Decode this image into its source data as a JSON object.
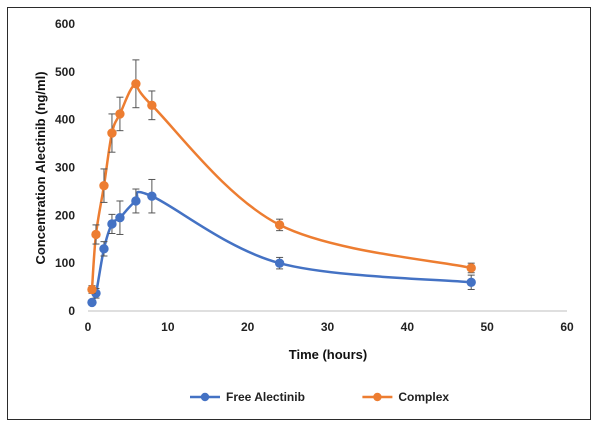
{
  "chart_data": {
    "type": "line",
    "title": "",
    "xlabel": "Time (hours)",
    "ylabel": "Concentration Alectinib (ng/ml)",
    "xlim": [
      0,
      60
    ],
    "ylim": [
      0,
      600
    ],
    "xticks": [
      0,
      10,
      20,
      30,
      40,
      50,
      60
    ],
    "yticks": [
      0,
      100,
      200,
      300,
      400,
      500,
      600
    ],
    "grid": false,
    "legend": "bottom",
    "series": [
      {
        "name": "Free Alectinib",
        "color": "#4472c4",
        "x": [
          0.5,
          1,
          2,
          3,
          4,
          6,
          8,
          24,
          48
        ],
        "y": [
          18,
          37,
          130,
          182,
          195,
          230,
          240,
          100,
          60
        ],
        "err": [
          5,
          10,
          15,
          20,
          35,
          25,
          35,
          12,
          15
        ]
      },
      {
        "name": "Complex",
        "color": "#ed7d31",
        "x": [
          0.5,
          1,
          2,
          3,
          4,
          6,
          8,
          24,
          48
        ],
        "y": [
          45,
          160,
          262,
          372,
          412,
          475,
          430,
          180,
          90
        ],
        "err": [
          8,
          20,
          35,
          40,
          35,
          50,
          30,
          12,
          10
        ]
      }
    ]
  }
}
